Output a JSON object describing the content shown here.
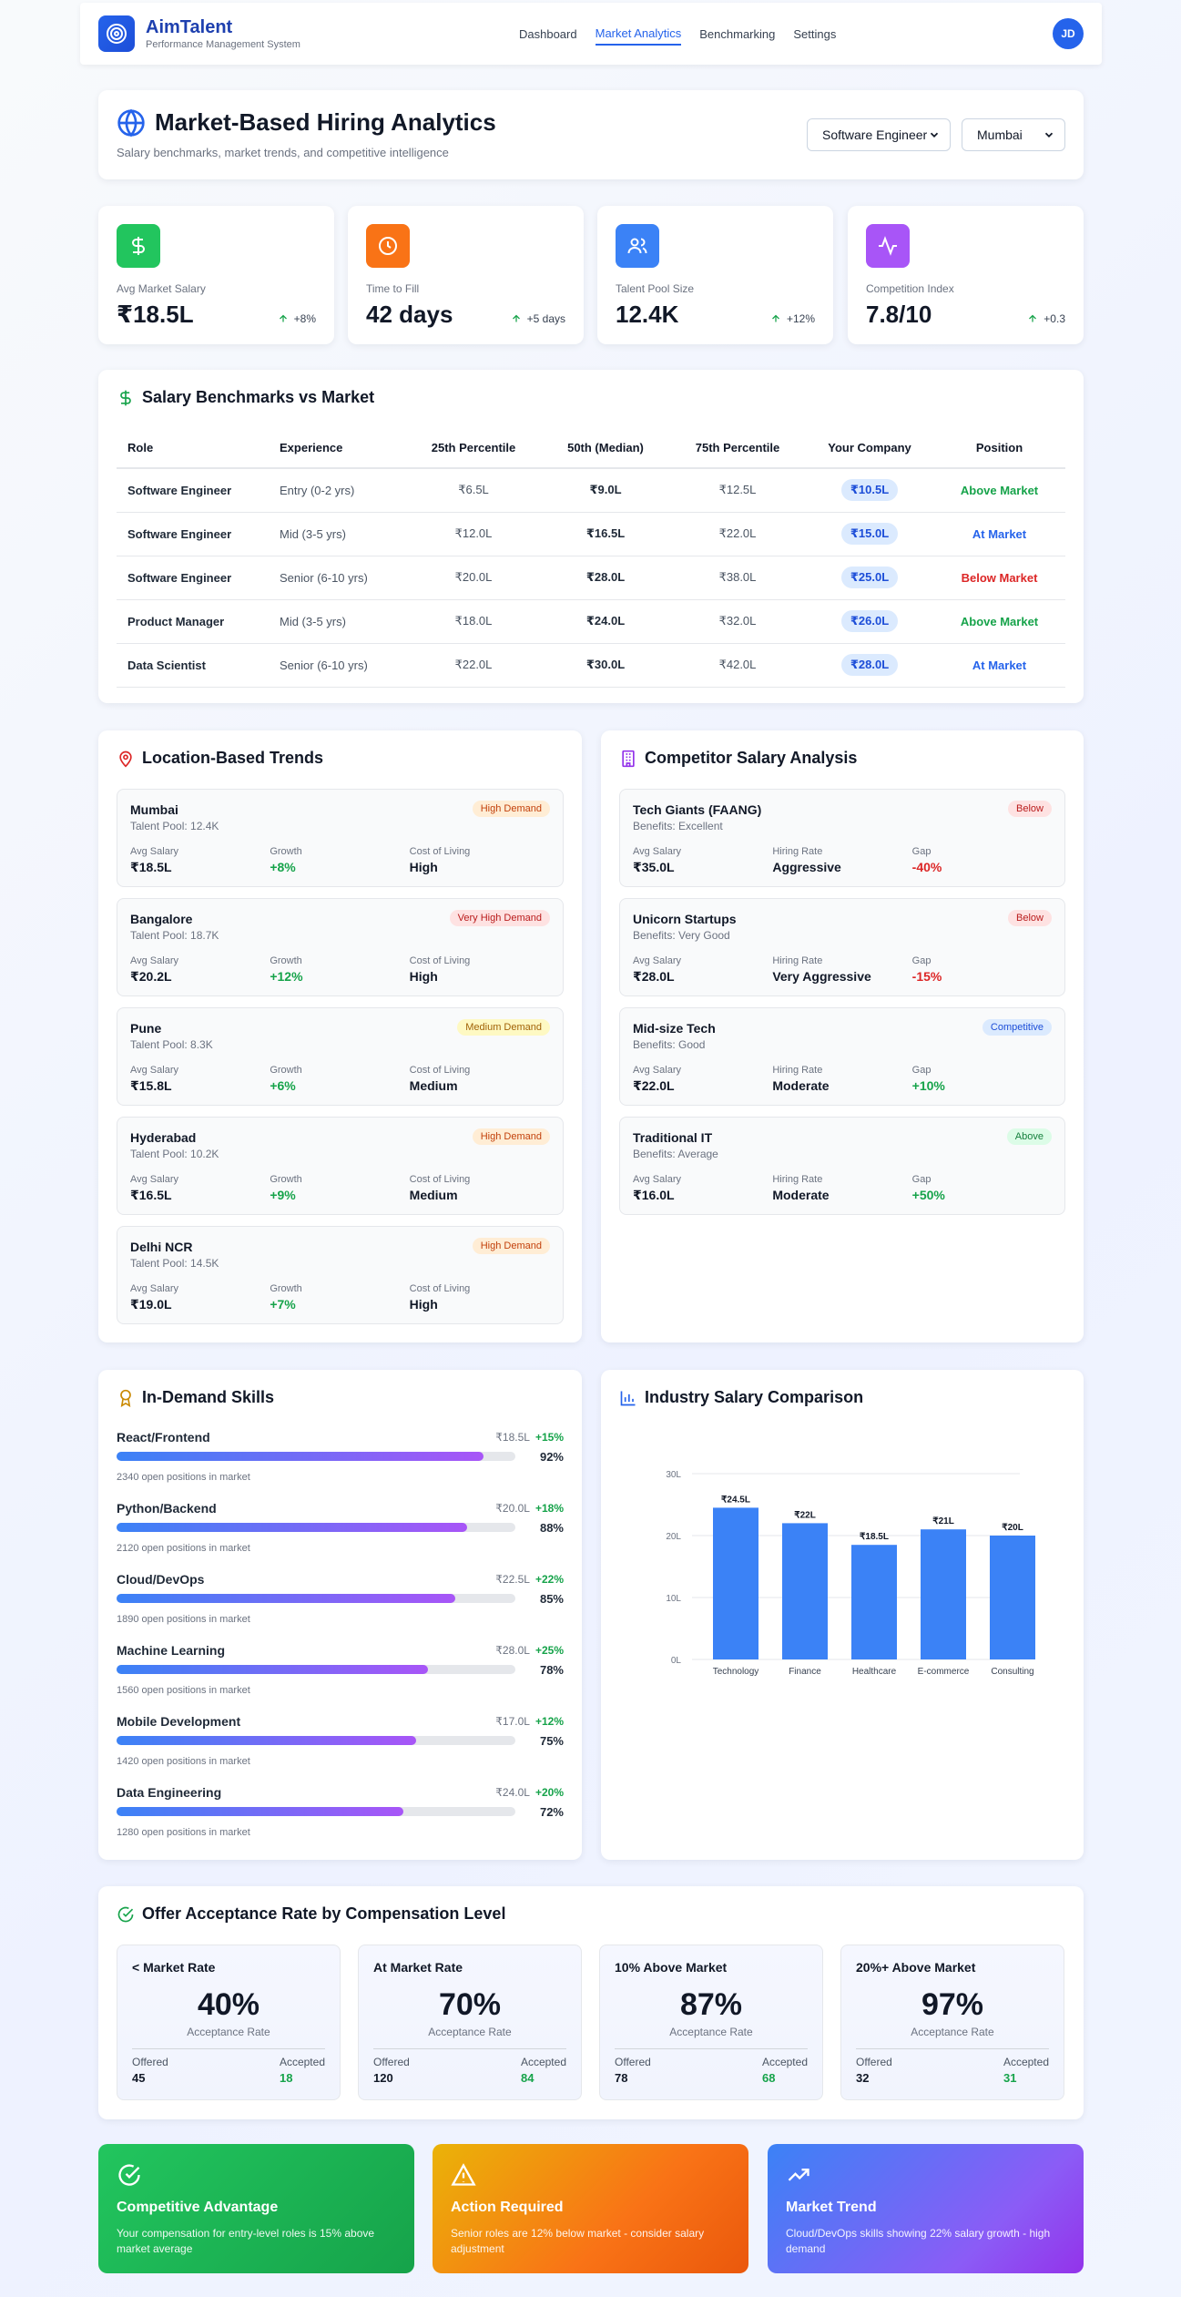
{
  "brand": {
    "name": "AimTalent",
    "subtitle": "Performance Management System"
  },
  "nav": {
    "links": [
      "Dashboard",
      "Market Analytics",
      "Benchmarking",
      "Settings"
    ],
    "active": "Market Analytics",
    "avatar": "JD"
  },
  "header": {
    "title": "Market-Based Hiring Analytics",
    "subtitle": "Salary benchmarks, market trends, and competitive intelligence",
    "role_select": "Software Engineer",
    "location_select": "Mumbai"
  },
  "kpis": [
    {
      "label": "Avg Market Salary",
      "value": "₹18.5L",
      "delta": "+8%",
      "icon": "dollar-icon",
      "color": "#22c55e"
    },
    {
      "label": "Time to Fill",
      "value": "42 days",
      "delta": "+5 days",
      "icon": "clock-icon",
      "color": "#f97316"
    },
    {
      "label": "Talent Pool Size",
      "value": "12.4K",
      "delta": "+12%",
      "icon": "users-icon",
      "color": "#3b82f6"
    },
    {
      "label": "Competition Index",
      "value": "7.8/10",
      "delta": "+0.3",
      "icon": "activity-icon",
      "color": "#a855f7"
    }
  ],
  "benchmarks": {
    "title": "Salary Benchmarks vs Market",
    "headers": [
      "Role",
      "Experience",
      "25th Percentile",
      "50th (Median)",
      "75th Percentile",
      "Your Company",
      "Position"
    ],
    "rows": [
      {
        "role": "Software Engineer",
        "exp": "Entry (0-2 yrs)",
        "p25": "₹6.5L",
        "p50": "₹9.0L",
        "p75": "₹12.5L",
        "yours": "₹10.5L",
        "position": "Above Market",
        "pos_color": "#16a34a"
      },
      {
        "role": "Software Engineer",
        "exp": "Mid (3-5 yrs)",
        "p25": "₹12.0L",
        "p50": "₹16.5L",
        "p75": "₹22.0L",
        "yours": "₹15.0L",
        "position": "At Market",
        "pos_color": "#2563eb"
      },
      {
        "role": "Software Engineer",
        "exp": "Senior (6-10 yrs)",
        "p25": "₹20.0L",
        "p50": "₹28.0L",
        "p75": "₹38.0L",
        "yours": "₹25.0L",
        "position": "Below Market",
        "pos_color": "#dc2626"
      },
      {
        "role": "Product Manager",
        "exp": "Mid (3-5 yrs)",
        "p25": "₹18.0L",
        "p50": "₹24.0L",
        "p75": "₹32.0L",
        "yours": "₹26.0L",
        "position": "Above Market",
        "pos_color": "#16a34a"
      },
      {
        "role": "Data Scientist",
        "exp": "Senior (6-10 yrs)",
        "p25": "₹22.0L",
        "p50": "₹30.0L",
        "p75": "₹42.0L",
        "yours": "₹28.0L",
        "position": "At Market",
        "pos_color": "#2563eb"
      }
    ]
  },
  "locations": {
    "title": "Location-Based Trends",
    "col_labels": [
      "Avg Salary",
      "Growth",
      "Cost of Living"
    ],
    "items": [
      {
        "name": "Mumbai",
        "pool": "Talent Pool: 12.4K",
        "badge": "High Demand",
        "salary": "₹18.5L",
        "growth": "+8%",
        "col": "High"
      },
      {
        "name": "Bangalore",
        "pool": "Talent Pool: 18.7K",
        "badge": "Very High Demand",
        "salary": "₹20.2L",
        "growth": "+12%",
        "col": "High"
      },
      {
        "name": "Pune",
        "pool": "Talent Pool: 8.3K",
        "badge": "Medium Demand",
        "salary": "₹15.8L",
        "growth": "+6%",
        "col": "Medium"
      },
      {
        "name": "Hyderabad",
        "pool": "Talent Pool: 10.2K",
        "badge": "High Demand",
        "salary": "₹16.5L",
        "growth": "+9%",
        "col": "Medium"
      },
      {
        "name": "Delhi NCR",
        "pool": "Talent Pool: 14.5K",
        "badge": "High Demand",
        "salary": "₹19.0L",
        "growth": "+7%",
        "col": "High"
      }
    ]
  },
  "competitors": {
    "title": "Competitor Salary Analysis",
    "col_labels": [
      "Avg Salary",
      "Hiring Rate",
      "Gap"
    ],
    "items": [
      {
        "name": "Tech Giants (FAANG)",
        "benefits": "Benefits: Excellent",
        "badge": "Below",
        "salary": "₹35.0L",
        "rate": "Aggressive",
        "gap": "-40%"
      },
      {
        "name": "Unicorn Startups",
        "benefits": "Benefits: Very Good",
        "badge": "Below",
        "salary": "₹28.0L",
        "rate": "Very Aggressive",
        "gap": "-15%"
      },
      {
        "name": "Mid-size Tech",
        "benefits": "Benefits: Good",
        "badge": "Competitive",
        "salary": "₹22.0L",
        "rate": "Moderate",
        "gap": "+10%"
      },
      {
        "name": "Traditional IT",
        "benefits": "Benefits: Average",
        "badge": "Above",
        "salary": "₹16.0L",
        "rate": "Moderate",
        "gap": "+50%"
      }
    ]
  },
  "skills": {
    "title": "In-Demand Skills",
    "items": [
      {
        "name": "React/Frontend",
        "salary": "₹18.5L",
        "growth": "+15%",
        "pct": "92%",
        "value": 92,
        "open": "2340 open positions in market"
      },
      {
        "name": "Python/Backend",
        "salary": "₹20.0L",
        "growth": "+18%",
        "pct": "88%",
        "value": 88,
        "open": "2120 open positions in market"
      },
      {
        "name": "Cloud/DevOps",
        "salary": "₹22.5L",
        "growth": "+22%",
        "pct": "85%",
        "value": 85,
        "open": "1890 open positions in market"
      },
      {
        "name": "Machine Learning",
        "salary": "₹28.0L",
        "growth": "+25%",
        "pct": "78%",
        "value": 78,
        "open": "1560 open positions in market"
      },
      {
        "name": "Mobile Development",
        "salary": "₹17.0L",
        "growth": "+12%",
        "pct": "75%",
        "value": 75,
        "open": "1420 open positions in market"
      },
      {
        "name": "Data Engineering",
        "salary": "₹24.0L",
        "growth": "+20%",
        "pct": "72%",
        "value": 72,
        "open": "1280 open positions in market"
      }
    ]
  },
  "industry": {
    "title": "Industry Salary Comparison",
    "chart_data": {
      "type": "bar",
      "categories": [
        "Technology",
        "Finance",
        "Healthcare",
        "E-commerce",
        "Consulting"
      ],
      "values": [
        24.5,
        22,
        18.5,
        21,
        20
      ],
      "labels": [
        "₹24.5L",
        "₹22L",
        "₹18.5L",
        "₹21L",
        "₹20L"
      ],
      "yticks": [
        "0L",
        "10L",
        "20L",
        "30L"
      ],
      "ylim": [
        0,
        30
      ],
      "color": "#3b82f6",
      "grid": true
    }
  },
  "offers": {
    "title": "Offer Acceptance Rate by Compensation Level",
    "rate_label": "Acceptance Rate",
    "offered_label": "Offered",
    "accepted_label": "Accepted",
    "items": [
      {
        "title": "< Market Rate",
        "pct": "40%",
        "offered": "45",
        "accepted": "18"
      },
      {
        "title": "At Market Rate",
        "pct": "70%",
        "offered": "120",
        "accepted": "84"
      },
      {
        "title": "10% Above Market",
        "pct": "87%",
        "offered": "78",
        "accepted": "68"
      },
      {
        "title": "20%+ Above Market",
        "pct": "97%",
        "offered": "32",
        "accepted": "31"
      }
    ]
  },
  "insights": [
    {
      "title": "Competitive Advantage",
      "text": "Your compensation for entry-level roles is 15% above market average",
      "icon": "check-circle-icon"
    },
    {
      "title": "Action Required",
      "text": "Senior roles are 12% below market - consider salary adjustment",
      "icon": "warning-icon"
    },
    {
      "title": "Market Trend",
      "text": "Cloud/DevOps skills showing 22% salary growth - high demand",
      "icon": "trending-up-icon"
    }
  ]
}
